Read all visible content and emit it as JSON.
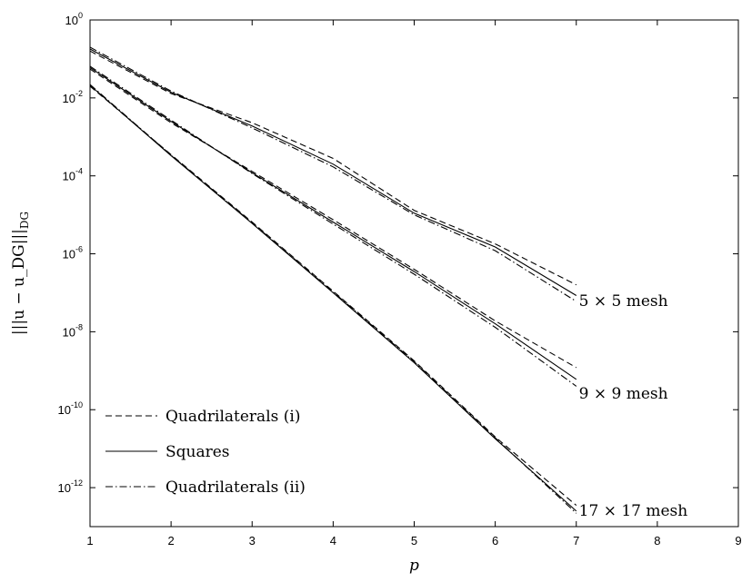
{
  "chart_data": {
    "type": "line",
    "yscale": "log",
    "xlabel": "p",
    "ylabel": "|||u − u_DG|||_DG",
    "xlim": [
      1,
      9
    ],
    "ylim": [
      1e-13,
      1
    ],
    "xticks": [
      "1",
      "2",
      "3",
      "4",
      "5",
      "6",
      "7",
      "8",
      "9"
    ],
    "yticks": [
      {
        "base": "10",
        "exp": "0",
        "value": 1
      },
      {
        "base": "10",
        "exp": "-2",
        "value": 0.01
      },
      {
        "base": "10",
        "exp": "-4",
        "value": 0.0001
      },
      {
        "base": "10",
        "exp": "-6",
        "value": 1e-06
      },
      {
        "base": "10",
        "exp": "-8",
        "value": 1e-08
      },
      {
        "base": "10",
        "exp": "-10",
        "value": 1e-10
      },
      {
        "base": "10",
        "exp": "-12",
        "value": 1e-12
      }
    ],
    "grid": false,
    "legend_position": "bottom-left",
    "legend": [
      {
        "label": "Quadrilaterals (i)",
        "style": "dashed"
      },
      {
        "label": "Squares",
        "style": "solid"
      },
      {
        "label": "Quadrilaterals (ii)",
        "style": "dashdot"
      }
    ],
    "x": [
      1,
      2,
      3,
      4,
      5,
      6,
      7
    ],
    "series": [
      {
        "group": "5 × 5 mesh",
        "style": "dashed",
        "values": [
          0.16,
          0.013,
          0.0023,
          0.00028,
          1.3e-05,
          1.8e-06,
          1.6e-07
        ]
      },
      {
        "group": "5 × 5 mesh",
        "style": "solid",
        "values": [
          0.18,
          0.014,
          0.0019,
          0.0002,
          1.1e-05,
          1.5e-06,
          8.5e-08
        ]
      },
      {
        "group": "5 × 5 mesh",
        "style": "dashdot",
        "values": [
          0.2,
          0.015,
          0.0017,
          0.00017,
          1e-05,
          1.2e-06,
          6e-08
        ]
      },
      {
        "group": "9 × 9 mesh",
        "style": "dashed",
        "values": [
          0.055,
          0.0023,
          0.00013,
          7.5e-06,
          4e-07,
          1.9e-08,
          1.2e-09
        ]
      },
      {
        "group": "9 × 9 mesh",
        "style": "solid",
        "values": [
          0.06,
          0.0025,
          0.00012,
          6.5e-06,
          3.5e-07,
          1.6e-08,
          6e-10
        ]
      },
      {
        "group": "9 × 9 mesh",
        "style": "dashdot",
        "values": [
          0.065,
          0.0027,
          0.000115,
          5.8e-06,
          3e-07,
          1.3e-08,
          4e-10
        ]
      },
      {
        "group": "17 × 17 mesh",
        "style": "dashed",
        "values": [
          0.02,
          0.00035,
          6.5e-06,
          1.1e-07,
          1.8e-09,
          2e-11,
          3.5e-13
        ]
      },
      {
        "group": "17 × 17 mesh",
        "style": "solid",
        "values": [
          0.021,
          0.00033,
          6e-06,
          1e-07,
          1.6e-09,
          1.8e-11,
          2.5e-13
        ]
      },
      {
        "group": "17 × 17 mesh",
        "style": "dashdot",
        "values": [
          0.022,
          0.00034,
          6.2e-06,
          1.05e-07,
          1.7e-09,
          1.9e-11,
          2.2e-13
        ]
      }
    ],
    "annotations": [
      {
        "text": "5 × 5 mesh",
        "x": 7.1,
        "y": 6e-08
      },
      {
        "text": "9 × 9 mesh",
        "x": 7.1,
        "y": 2.5e-10
      },
      {
        "text": "17 × 17 mesh",
        "x": 7.1,
        "y": 2.5e-13
      }
    ]
  }
}
